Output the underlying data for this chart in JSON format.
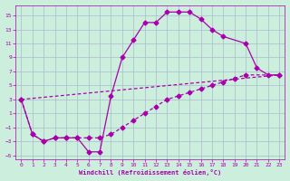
{
  "xlabel": "Windchill (Refroidissement éolien,°C)",
  "bg_color": "#cceedd",
  "grid_color": "#aabbcc",
  "line_color": "#aa00aa",
  "xlim": [
    -0.5,
    23.5
  ],
  "ylim": [
    -5.5,
    16.5
  ],
  "xticks": [
    0,
    1,
    2,
    3,
    4,
    5,
    6,
    7,
    8,
    9,
    10,
    11,
    12,
    13,
    14,
    15,
    16,
    17,
    18,
    19,
    20,
    21,
    22,
    23
  ],
  "yticks": [
    -5,
    -3,
    -1,
    1,
    3,
    5,
    7,
    9,
    11,
    13,
    15
  ],
  "line1_x": [
    0,
    1,
    2,
    3,
    4,
    5,
    6,
    7,
    8,
    9,
    10,
    11,
    12,
    13,
    14,
    15,
    16,
    17,
    18,
    20,
    21,
    22,
    23
  ],
  "line1_y": [
    3,
    -2,
    -3,
    -2.5,
    -2.5,
    -2.5,
    -4.5,
    -4.5,
    3.5,
    9,
    11.5,
    14,
    14,
    15.5,
    15.5,
    15.5,
    14.5,
    13,
    12,
    11,
    7.5,
    6.5,
    6.5
  ],
  "line2_x": [
    0,
    1,
    2,
    3,
    4,
    5,
    6,
    7,
    8,
    9,
    10,
    11,
    12,
    13,
    14,
    15,
    16,
    17,
    18,
    19,
    20,
    23
  ],
  "line2_y": [
    3,
    -2,
    -3,
    -2.5,
    -2.5,
    -2.5,
    -2.5,
    -2.5,
    -2,
    -1,
    0,
    1,
    2,
    3,
    3.5,
    4,
    4.5,
    5,
    5.5,
    6,
    6.5,
    6.5
  ],
  "line3_x": [
    0,
    23
  ],
  "line3_y": [
    3,
    6.5
  ]
}
